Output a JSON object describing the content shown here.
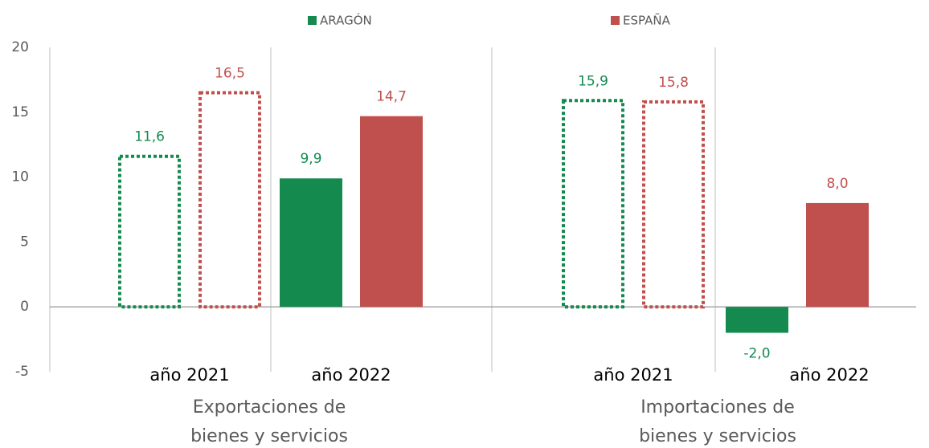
{
  "chart_data": {
    "type": "bar",
    "categories": [
      "año 2021",
      "año 2022",
      "año 2021",
      "año 2022"
    ],
    "groups": [
      "Exportaciones de bienes y servicios",
      "Importaciones de bienes y servicios"
    ],
    "bar_style": [
      "dotted",
      "solid",
      "dotted",
      "solid"
    ],
    "series": [
      {
        "name": "ARAGÓN",
        "color": "#148a4f",
        "values": [
          11.6,
          9.9,
          15.9,
          -2.0
        ],
        "value_labels": [
          "11,6",
          "9,9",
          "15,9",
          "-2,0"
        ]
      },
      {
        "name": "ESPAÑA",
        "color": "#c0504d",
        "values": [
          16.5,
          14.7,
          15.8,
          8.0
        ],
        "value_labels": [
          "16,5",
          "14,7",
          "15,8",
          "8,0"
        ]
      }
    ],
    "ylim": [
      -5,
      20
    ],
    "yticks": [
      -5,
      0,
      5,
      10,
      15,
      20
    ],
    "legend": "top"
  }
}
